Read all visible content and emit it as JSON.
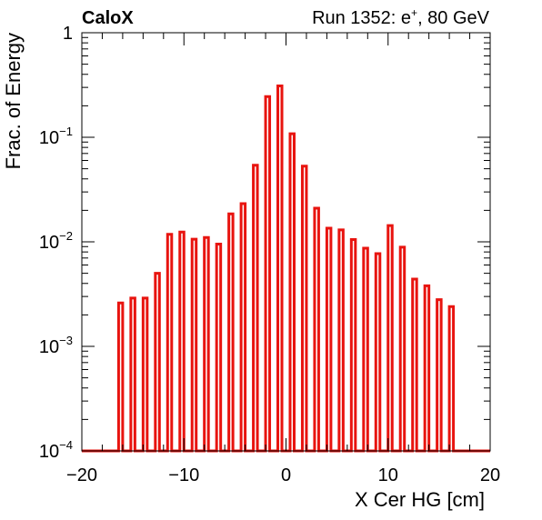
{
  "header": {
    "left": "CaloX",
    "right_prefix": "Run 1352: e",
    "right_sup": "+",
    "right_suffix": ", 80 GeV"
  },
  "chart_data": {
    "type": "bar",
    "title": "",
    "xlabel": "X Cer HG [cm]",
    "ylabel": "Frac. of Energy",
    "xlim": [
      -20,
      20
    ],
    "ylim": [
      0.0001,
      1
    ],
    "yscale": "log",
    "x_ticks": [
      {
        "value": -20,
        "label": "−20"
      },
      {
        "value": -10,
        "label": "−10"
      },
      {
        "value": 0,
        "label": "0"
      },
      {
        "value": 10,
        "label": "10"
      },
      {
        "value": 20,
        "label": "20"
      }
    ],
    "y_ticks": [
      {
        "value": 1,
        "base": "1",
        "exp": ""
      },
      {
        "value": 0.1,
        "base": "10",
        "exp": "−1"
      },
      {
        "value": 0.01,
        "base": "10",
        "exp": "−2"
      },
      {
        "value": 0.001,
        "base": "10",
        "exp": "−3"
      },
      {
        "value": 0.0001,
        "base": "10",
        "exp": "−4"
      }
    ],
    "bin_width": 0.4,
    "line_color": "#e8140f",
    "grid": false,
    "x": [
      -16.2,
      -15.0,
      -13.8,
      -12.6,
      -11.4,
      -10.2,
      -9.0,
      -7.8,
      -6.6,
      -5.4,
      -4.2,
      -3.0,
      -1.8,
      -0.6,
      0.6,
      1.8,
      3.0,
      4.2,
      5.4,
      6.6,
      7.8,
      9.0,
      10.2,
      11.4,
      12.6,
      13.8,
      15.0,
      16.2
    ],
    "values": [
      0.0026,
      0.0029,
      0.0029,
      0.005,
      0.0118,
      0.0124,
      0.0106,
      0.011,
      0.0095,
      0.0185,
      0.0232,
      0.054,
      0.245,
      0.31,
      0.108,
      0.053,
      0.021,
      0.0135,
      0.013,
      0.0105,
      0.0087,
      0.0077,
      0.0143,
      0.0089,
      0.0044,
      0.0038,
      0.0028,
      0.0024
    ]
  }
}
